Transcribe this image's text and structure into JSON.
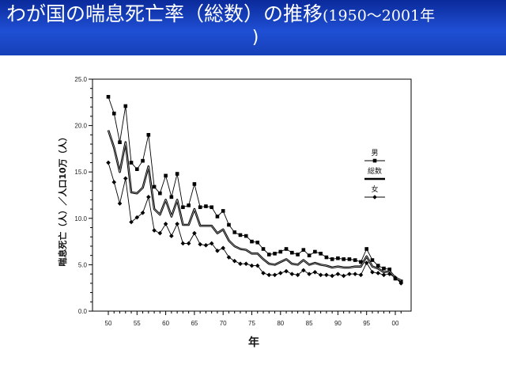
{
  "header": {
    "title_main": "わが国の喘息死亡率（総数）の推移",
    "title_sub": "(1950〜2001年",
    "title_close": ")"
  },
  "chart_data": {
    "type": "line",
    "xlabel": "年",
    "ylabel": "喘息死亡（人）／人口10万（人）",
    "ylim": [
      0,
      25
    ],
    "y_ticks": [
      "0.0",
      "5.0",
      "10.0",
      "15.0",
      "20.0",
      "25.0"
    ],
    "x_tick_values": [
      1950,
      1955,
      1960,
      1965,
      1970,
      1975,
      1980,
      1985,
      1990,
      1995,
      2000
    ],
    "x_ticks": [
      "50",
      "55",
      "60",
      "65",
      "70",
      "75",
      "80",
      "85",
      "90",
      "95",
      "00"
    ],
    "x": [
      1950,
      1951,
      1952,
      1953,
      1954,
      1955,
      1956,
      1957,
      1958,
      1959,
      1960,
      1961,
      1962,
      1963,
      1964,
      1965,
      1966,
      1967,
      1968,
      1969,
      1970,
      1971,
      1972,
      1973,
      1974,
      1975,
      1976,
      1977,
      1978,
      1979,
      1980,
      1981,
      1982,
      1983,
      1984,
      1985,
      1986,
      1987,
      1988,
      1989,
      1990,
      1991,
      1992,
      1993,
      1994,
      1995,
      1996,
      1997,
      1998,
      1999,
      2000,
      2001
    ],
    "legend": {
      "placement": "right",
      "entries": [
        "男",
        "総数",
        "女"
      ]
    },
    "series": [
      {
        "name": "男",
        "marker": "square",
        "values": [
          23.1,
          21.3,
          18.2,
          22.1,
          16.0,
          15.3,
          16.2,
          19.0,
          13.4,
          12.7,
          14.6,
          12.3,
          14.8,
          11.2,
          11.4,
          13.7,
          11.2,
          11.3,
          11.2,
          10.2,
          10.8,
          9.3,
          8.5,
          8.2,
          8.1,
          7.5,
          7.4,
          6.7,
          6.1,
          6.2,
          6.4,
          6.7,
          6.3,
          6.1,
          6.6,
          6.0,
          6.4,
          6.2,
          5.8,
          5.6,
          5.7,
          5.6,
          5.6,
          5.5,
          5.3,
          6.7,
          5.5,
          4.9,
          4.6,
          4.5,
          3.5,
          3.2
        ]
      },
      {
        "name": "総数",
        "marker": "none",
        "values": [
          19.5,
          17.6,
          15.0,
          18.2,
          12.8,
          12.7,
          13.3,
          15.6,
          11.0,
          10.4,
          12.0,
          10.2,
          12.0,
          9.3,
          9.3,
          11.0,
          9.2,
          9.2,
          9.2,
          8.4,
          8.8,
          7.6,
          7.0,
          6.7,
          6.6,
          6.2,
          6.2,
          5.6,
          5.1,
          5.0,
          5.3,
          5.6,
          5.1,
          5.0,
          5.5,
          5.0,
          5.2,
          5.0,
          4.9,
          4.7,
          4.8,
          4.7,
          4.7,
          4.8,
          4.8,
          5.9,
          4.8,
          4.6,
          4.2,
          4.3,
          3.6,
          3.3
        ]
      },
      {
        "name": "女",
        "marker": "diamond",
        "values": [
          16.0,
          13.9,
          11.6,
          14.3,
          9.6,
          10.1,
          10.6,
          12.3,
          8.7,
          8.4,
          9.4,
          8.1,
          9.4,
          7.3,
          7.3,
          8.4,
          7.2,
          7.1,
          7.3,
          6.5,
          6.8,
          5.8,
          5.4,
          5.1,
          5.1,
          4.9,
          4.9,
          4.1,
          3.9,
          3.9,
          4.1,
          4.3,
          4.0,
          3.9,
          4.4,
          4.0,
          4.2,
          3.9,
          3.9,
          3.8,
          4.0,
          3.8,
          4.0,
          4.0,
          3.9,
          5.2,
          4.2,
          4.1,
          3.9,
          4.0,
          3.6,
          3.0
        ]
      }
    ],
    "colors": {
      "line": "#000000",
      "banner": "#1f4fd4"
    }
  }
}
